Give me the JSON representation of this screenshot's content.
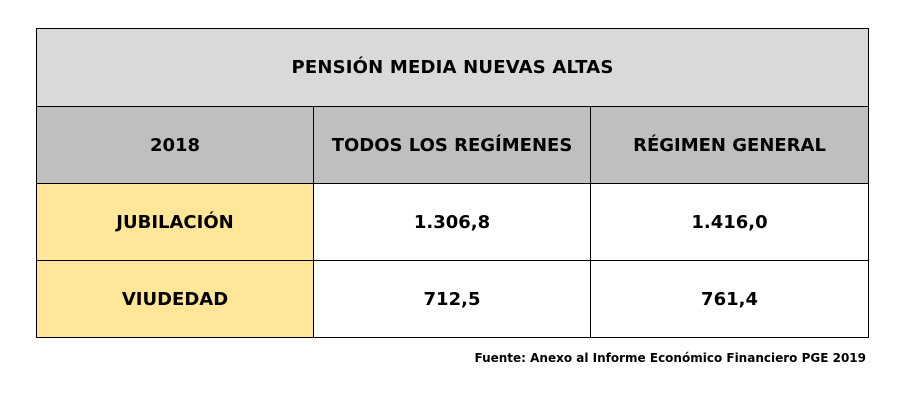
{
  "table": {
    "title": "PENSIÓN MEDIA NUEVAS ALTAS",
    "header": {
      "year": "2018",
      "col_all": "TODOS LOS REGÍMENES",
      "col_general": "RÉGIMEN GENERAL"
    },
    "rows": [
      {
        "label": "JUBILACIÓN",
        "all": "1.306,8",
        "general": "1.416,0"
      },
      {
        "label": "VIUDEDAD",
        "all": "712,5",
        "general": "761,4"
      }
    ]
  },
  "colors": {
    "title_bg": "#d9d9d9",
    "header_bg": "#bfbfbf",
    "label_bg": "#ffe699"
  },
  "source": "Fuente: Anexo al Informe Económico Financiero PGE 2019"
}
